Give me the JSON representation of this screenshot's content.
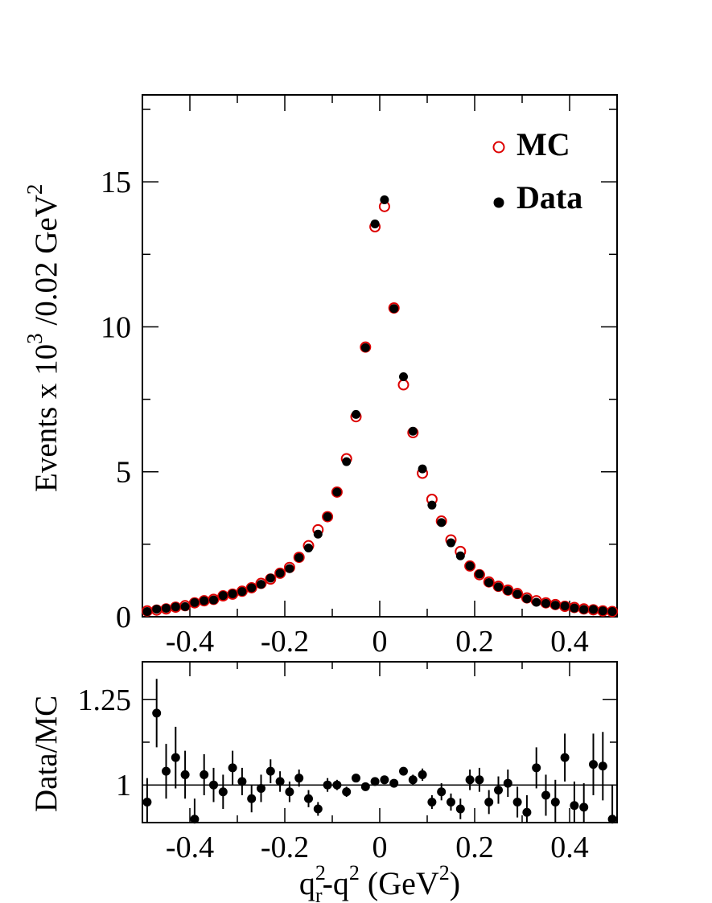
{
  "chart_data": [
    {
      "type": "scatter",
      "name": "main",
      "ylabel_main": "Events x 10",
      "ylabel_sup1": "3",
      "ylabel_mid": " /0.02 GeV",
      "ylabel_sup2": "2",
      "xlim": [
        -0.5,
        0.5
      ],
      "ylim": [
        0,
        18
      ],
      "xticks": [
        -0.4,
        -0.2,
        0,
        0.2,
        0.4
      ],
      "xtick_labels": [
        "-0.4",
        "-0.2",
        "0",
        "0.2",
        "0.4"
      ],
      "yticks": [
        0,
        5,
        10,
        15
      ],
      "ytick_labels": [
        "0",
        "5",
        "10",
        "15"
      ],
      "legend_position": "top-right",
      "series": [
        {
          "name": "MC",
          "color": "#dd0000",
          "marker": "open-circle",
          "x": [
            -0.49,
            -0.47,
            -0.45,
            -0.43,
            -0.41,
            -0.39,
            -0.37,
            -0.35,
            -0.33,
            -0.31,
            -0.29,
            -0.27,
            -0.25,
            -0.23,
            -0.21,
            -0.19,
            -0.17,
            -0.15,
            -0.13,
            -0.11,
            -0.09,
            -0.07,
            -0.05,
            -0.03,
            -0.01,
            0.01,
            0.03,
            0.05,
            0.07,
            0.09,
            0.11,
            0.13,
            0.15,
            0.17,
            0.19,
            0.21,
            0.23,
            0.25,
            0.27,
            0.29,
            0.31,
            0.33,
            0.35,
            0.37,
            0.39,
            0.41,
            0.43,
            0.45,
            0.47,
            0.49
          ],
          "y": [
            0.2,
            0.23,
            0.27,
            0.33,
            0.38,
            0.48,
            0.55,
            0.6,
            0.72,
            0.78,
            0.88,
            1.0,
            1.15,
            1.3,
            1.5,
            1.7,
            2.05,
            2.45,
            3.0,
            3.45,
            4.3,
            5.45,
            6.9,
            9.3,
            13.45,
            14.15,
            10.65,
            8.0,
            6.35,
            4.95,
            4.05,
            3.3,
            2.65,
            2.25,
            1.75,
            1.45,
            1.2,
            1.05,
            0.92,
            0.8,
            0.65,
            0.55,
            0.48,
            0.42,
            0.36,
            0.32,
            0.27,
            0.24,
            0.2,
            0.18
          ]
        },
        {
          "name": "Data",
          "color": "#000000",
          "marker": "filled-circle",
          "x": [
            -0.49,
            -0.47,
            -0.45,
            -0.43,
            -0.41,
            -0.39,
            -0.37,
            -0.35,
            -0.33,
            -0.31,
            -0.29,
            -0.27,
            -0.25,
            -0.23,
            -0.21,
            -0.19,
            -0.17,
            -0.15,
            -0.13,
            -0.11,
            -0.09,
            -0.07,
            -0.05,
            -0.03,
            -0.01,
            0.01,
            0.03,
            0.05,
            0.07,
            0.09,
            0.11,
            0.13,
            0.15,
            0.17,
            0.19,
            0.21,
            0.23,
            0.25,
            0.27,
            0.29,
            0.31,
            0.33,
            0.35,
            0.37,
            0.39,
            0.41,
            0.43,
            0.45,
            0.47,
            0.49
          ],
          "y": [
            0.18,
            0.26,
            0.29,
            0.34,
            0.35,
            0.49,
            0.55,
            0.58,
            0.73,
            0.79,
            0.87,
            1.0,
            1.12,
            1.33,
            1.5,
            1.66,
            2.04,
            2.37,
            2.85,
            3.45,
            4.3,
            5.35,
            6.98,
            9.28,
            13.55,
            14.38,
            10.63,
            8.28,
            6.4,
            5.1,
            3.85,
            3.25,
            2.55,
            2.1,
            1.75,
            1.47,
            1.18,
            1.03,
            0.9,
            0.78,
            0.62,
            0.5,
            0.46,
            0.4,
            0.37,
            0.3,
            0.25,
            0.25,
            0.2,
            0.18
          ]
        }
      ]
    },
    {
      "type": "scatter",
      "name": "ratio",
      "xlabel_q": "q",
      "xlabel_sup_a": "2",
      "xlabel_sub_r": "r",
      "xlabel_mid": "-q",
      "xlabel_sup_b": "2",
      "xlabel_unit": " (GeV",
      "xlabel_sup_c": "2",
      "xlabel_close": ")",
      "ylabel": "Data/MC",
      "xlim": [
        -0.5,
        0.5
      ],
      "ylim": [
        0.89,
        1.36
      ],
      "xticks": [
        -0.4,
        -0.2,
        0,
        0.2,
        0.4
      ],
      "xtick_labels": [
        "-0.4",
        "-0.2",
        "0",
        "0.2",
        "0.4"
      ],
      "yticks": [
        1,
        1.25
      ],
      "ytick_labels": [
        "1",
        "1.25"
      ],
      "reference_line": 1,
      "series": [
        {
          "name": "Data/MC",
          "color": "#000000",
          "x": [
            -0.49,
            -0.47,
            -0.45,
            -0.43,
            -0.41,
            -0.39,
            -0.37,
            -0.35,
            -0.33,
            -0.31,
            -0.29,
            -0.27,
            -0.25,
            -0.23,
            -0.21,
            -0.19,
            -0.17,
            -0.15,
            -0.13,
            -0.11,
            -0.09,
            -0.07,
            -0.05,
            -0.03,
            -0.01,
            0.01,
            0.03,
            0.05,
            0.07,
            0.09,
            0.11,
            0.13,
            0.15,
            0.17,
            0.19,
            0.21,
            0.23,
            0.25,
            0.27,
            0.29,
            0.31,
            0.33,
            0.35,
            0.37,
            0.39,
            0.41,
            0.43,
            0.45,
            0.47,
            0.49
          ],
          "y": [
            0.95,
            1.21,
            1.04,
            1.08,
            1.03,
            0.9,
            1.03,
            1.0,
            0.98,
            1.05,
            1.01,
            0.96,
            0.99,
            1.04,
            1.01,
            0.98,
            1.02,
            0.96,
            0.93,
            1.0,
            1.0,
            0.98,
            1.02,
            0.995,
            1.01,
            1.015,
            1.005,
            1.04,
            1.015,
            1.03,
            0.95,
            0.98,
            0.95,
            0.93,
            1.015,
            1.015,
            0.95,
            0.985,
            1.005,
            0.95,
            0.92,
            1.05,
            0.97,
            0.95,
            1.08,
            0.94,
            0.935,
            1.06,
            1.055,
            0.9
          ],
          "err": [
            0.07,
            0.1,
            0.08,
            0.09,
            0.07,
            0.06,
            0.06,
            0.05,
            0.05,
            0.05,
            0.04,
            0.04,
            0.04,
            0.035,
            0.03,
            0.03,
            0.025,
            0.025,
            0.02,
            0.02,
            0.015,
            0.015,
            0.012,
            0.01,
            0.008,
            0.008,
            0.01,
            0.012,
            0.015,
            0.018,
            0.02,
            0.025,
            0.025,
            0.03,
            0.03,
            0.035,
            0.035,
            0.04,
            0.04,
            0.045,
            0.05,
            0.06,
            0.06,
            0.065,
            0.07,
            0.07,
            0.07,
            0.09,
            0.1,
            0.1
          ]
        }
      ]
    }
  ]
}
